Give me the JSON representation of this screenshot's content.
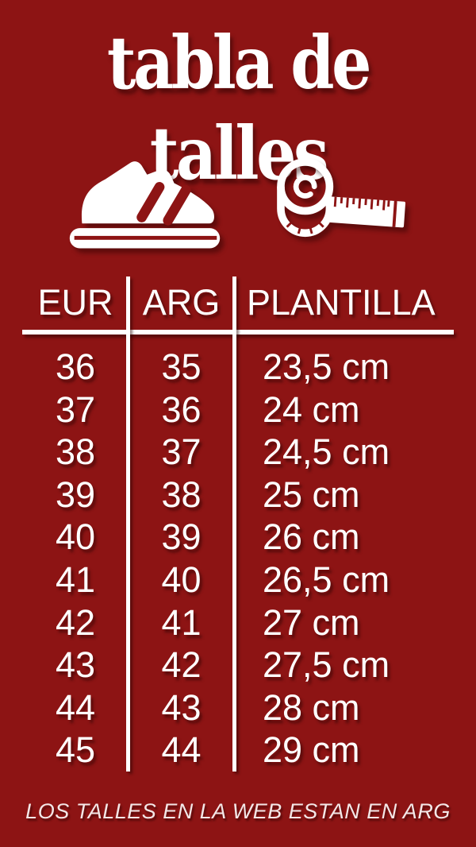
{
  "title": "tabla de talles",
  "colors": {
    "background": "#8d1414",
    "text": "#ffffff",
    "footer_text": "#f3e7e7"
  },
  "icons": {
    "shoe": "sneaker-icon",
    "tape": "measuring-tape-icon"
  },
  "table": {
    "headers": [
      "EUR",
      "ARG",
      "PLANTILLA"
    ],
    "rows": [
      [
        "36",
        "35",
        "23,5 cm"
      ],
      [
        "37",
        "36",
        "24 cm"
      ],
      [
        "38",
        "37",
        "24,5 cm"
      ],
      [
        "39",
        "38",
        "25 cm"
      ],
      [
        "40",
        "39",
        "26 cm"
      ],
      [
        "41",
        "40",
        "26,5 cm"
      ],
      [
        "42",
        "41",
        "27 cm"
      ],
      [
        "43",
        "42",
        "27,5 cm"
      ],
      [
        "44",
        "43",
        "28 cm"
      ],
      [
        "45",
        "44",
        "29 cm"
      ]
    ]
  },
  "footer": "LOS TALLES EN LA WEB ESTAN EN ARG",
  "chart_data": {
    "type": "table",
    "title": "tabla de talles",
    "columns": [
      "EUR",
      "ARG",
      "PLANTILLA"
    ],
    "rows": [
      [
        "36",
        "35",
        "23,5 cm"
      ],
      [
        "37",
        "36",
        "24 cm"
      ],
      [
        "38",
        "37",
        "24,5 cm"
      ],
      [
        "39",
        "38",
        "25 cm"
      ],
      [
        "40",
        "39",
        "26 cm"
      ],
      [
        "41",
        "40",
        "26,5 cm"
      ],
      [
        "42",
        "41",
        "27 cm"
      ],
      [
        "43",
        "42",
        "27,5 cm"
      ],
      [
        "44",
        "43",
        "28 cm"
      ],
      [
        "45",
        "44",
        "29 cm"
      ]
    ],
    "note": "LOS TALLES EN LA WEB ESTAN EN ARG"
  }
}
